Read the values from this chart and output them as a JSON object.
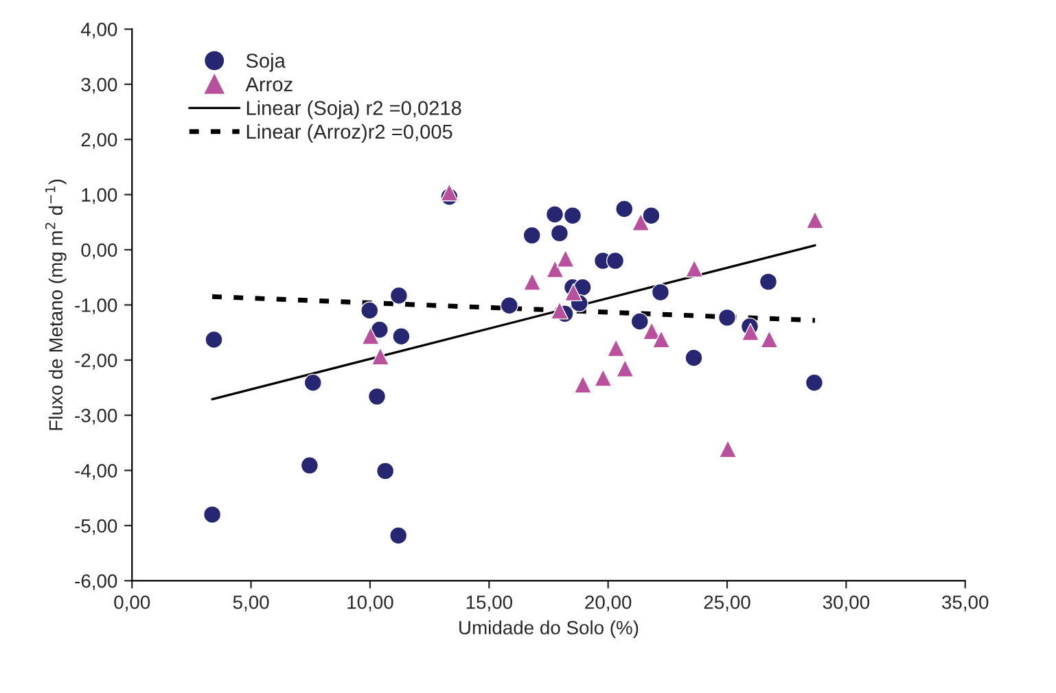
{
  "chart_data": {
    "type": "scatter",
    "xlabel": "Umidade do Solo (%)",
    "ylabel": "Fluxo de Metano (mg m$^{2}$ d$^{−1}$)",
    "xlim": [
      0,
      35
    ],
    "ylim": [
      -6,
      4
    ],
    "xticks": [
      {
        "value": 0,
        "label": "0,00"
      },
      {
        "value": 5,
        "label": "5,00"
      },
      {
        "value": 10,
        "label": "10,00"
      },
      {
        "value": 15,
        "label": "15,00"
      },
      {
        "value": 20,
        "label": "20,00"
      },
      {
        "value": 25,
        "label": "25,00"
      },
      {
        "value": 30,
        "label": "30,00"
      },
      {
        "value": 35,
        "label": "35,00"
      }
    ],
    "yticks": [
      {
        "value": -6,
        "label": "-6,00"
      },
      {
        "value": -5,
        "label": "-5,00"
      },
      {
        "value": -4,
        "label": "-4,00"
      },
      {
        "value": -3,
        "label": "-3,00"
      },
      {
        "value": -2,
        "label": "-2,00"
      },
      {
        "value": -1,
        "label": "-1,00"
      },
      {
        "value": 0,
        "label": "0,00"
      },
      {
        "value": 1,
        "label": "1,00"
      },
      {
        "value": 2,
        "label": "2,00"
      },
      {
        "value": 3,
        "label": "3,00"
      },
      {
        "value": 4,
        "label": "4,00"
      }
    ],
    "grid": false,
    "legend": "top left",
    "series": [
      {
        "name": "Soja",
        "marker": "circle",
        "color": "#262673",
        "x": [
          3.37,
          3.44,
          7.6,
          7.46,
          9.98,
          10.4,
          10.29,
          10.64,
          11.21,
          11.31,
          11.19,
          13.33,
          15.85,
          16.8,
          17.76,
          18.51,
          17.96,
          20.68,
          21.81,
          19.78,
          20.3,
          18.51,
          18.93,
          18.79,
          18.18,
          22.2,
          21.33,
          23.6,
          25.0,
          25.95,
          26.73,
          28.66
        ],
        "values": [
          -4.8,
          -1.63,
          -2.41,
          -3.91,
          -1.1,
          -1.45,
          -2.66,
          -4.01,
          -0.83,
          -1.57,
          -5.18,
          0.96,
          -1.01,
          0.26,
          0.64,
          0.62,
          0.3,
          0.74,
          0.62,
          -0.2,
          -0.2,
          -0.68,
          -0.68,
          -0.97,
          -1.16,
          -0.77,
          -1.3,
          -1.96,
          -1.23,
          -1.39,
          -0.58,
          -2.41
        ]
      },
      {
        "name": "Arroz",
        "marker": "triangle",
        "color": "#b8509e",
        "x": [
          13.33,
          10.02,
          10.43,
          16.81,
          17.77,
          18.21,
          18.54,
          17.96,
          21.37,
          23.62,
          28.69,
          21.83,
          22.23,
          20.33,
          20.71,
          19.79,
          18.94,
          25.98,
          26.77,
          25.03
        ],
        "values": [
          1.04,
          -1.56,
          -1.93,
          -0.58,
          -0.35,
          -0.16,
          -0.77,
          -1.1,
          0.5,
          -0.34,
          0.54,
          -1.47,
          -1.62,
          -1.78,
          -2.15,
          -2.32,
          -2.44,
          -1.49,
          -1.62,
          -3.61
        ]
      },
      {
        "name": "Linear (Soja) r2 =0,0218",
        "type": "line",
        "line_style": "solid",
        "color": "#000000",
        "x": [
          3.37,
          28.69
        ],
        "values": [
          -2.71,
          0.08
        ]
      },
      {
        "name": "Linear (Arroz)r2 =0,005",
        "type": "line",
        "line_style": "dotted",
        "color": "#000000",
        "x": [
          3.37,
          28.69
        ],
        "values": [
          -0.85,
          -1.28
        ]
      }
    ]
  }
}
